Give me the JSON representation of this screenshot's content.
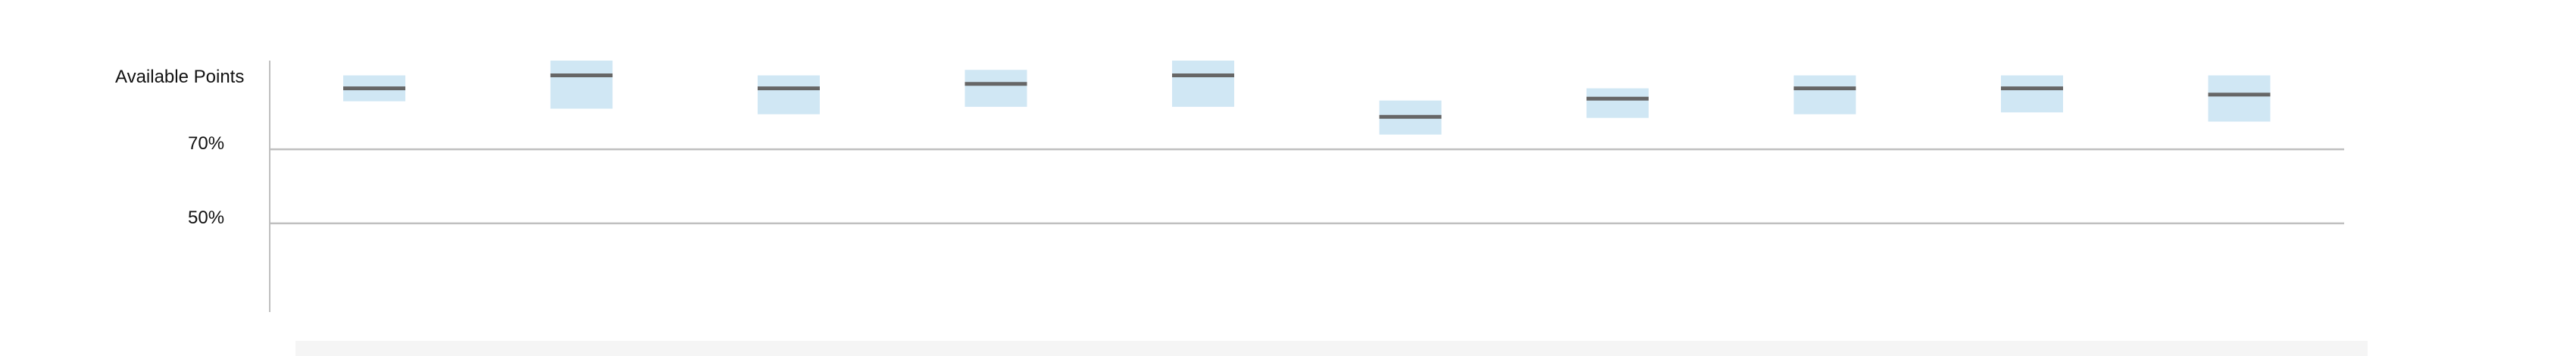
{
  "chart_data": {
    "type": "box",
    "ylabel": "Available Points",
    "y_ticks": [
      "70%",
      "50%"
    ],
    "reference_lines": [
      70,
      50
    ],
    "ylim": [
      26,
      94
    ],
    "grid": false,
    "legend": "none",
    "items": [
      {
        "low": 83,
        "median": 86.5,
        "high": 90
      },
      {
        "low": 81,
        "median": 90,
        "high": 94
      },
      {
        "low": 79.5,
        "median": 86.5,
        "high": 90
      },
      {
        "low": 81.5,
        "median": 87.7,
        "high": 91.5
      },
      {
        "low": 81.5,
        "median": 90,
        "high": 94
      },
      {
        "low": 74,
        "median": 78.8,
        "high": 83.2
      },
      {
        "low": 78.5,
        "median": 83.7,
        "high": 86.5
      },
      {
        "low": 79.5,
        "median": 86.5,
        "high": 90
      },
      {
        "low": 80,
        "median": 86.5,
        "high": 90
      },
      {
        "low": 77.5,
        "median": 84.8,
        "high": 90
      }
    ],
    "colors": {
      "box_fill": "#d0e7f4",
      "median_line": "#666666",
      "reference_line": "#bfbfbf",
      "axis_line": "#bfbfbf",
      "footer_band": "#f5f5f5"
    }
  }
}
